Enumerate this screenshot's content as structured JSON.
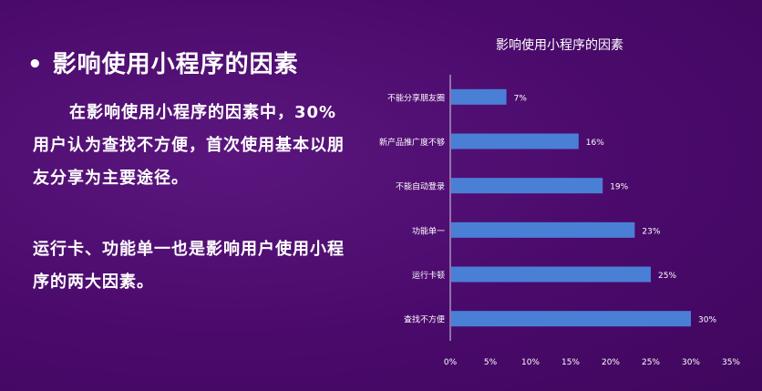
{
  "slide": {
    "heading": "• 影响使用小程序的因素",
    "paragraph1": "在影响使用小程序的因素中，30%用户认为查找不方便，首次使用基本以朋友分享为主要途径。",
    "paragraph2": "运行卡、功能单一也是影响用户使用小程序的两大因素。"
  },
  "chart_data": {
    "type": "bar",
    "orientation": "horizontal",
    "title": "影响使用小程序的因素",
    "categories": [
      "不能分享朋友圈",
      "新产品推广度不够",
      "不能自动登录",
      "功能单一",
      "运行卡顿",
      "查找不方便"
    ],
    "values": [
      7,
      16,
      19,
      23,
      25,
      30
    ],
    "data_labels": [
      "7%",
      "16%",
      "19%",
      "23%",
      "25%",
      "30%"
    ],
    "xlim": [
      0,
      35
    ],
    "x_ticks": [
      "0%",
      "5%",
      "10%",
      "15%",
      "20%",
      "25%",
      "30%",
      "35%"
    ],
    "grid": false,
    "bar_color": "#4a7fd6",
    "text_color": "#ffffff"
  }
}
